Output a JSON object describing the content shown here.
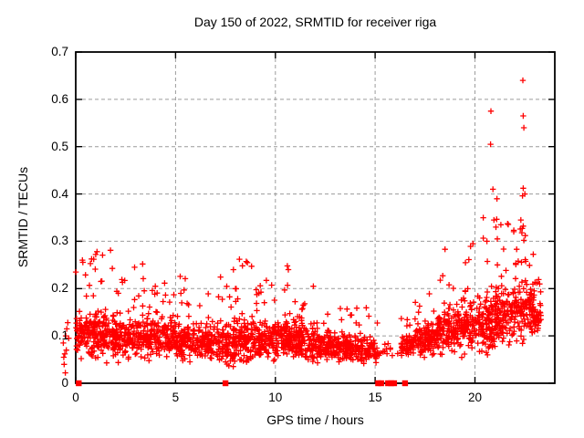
{
  "window": {
    "background": "#ffffff"
  },
  "chart_data": {
    "type": "scatter",
    "title": "Day 150 of 2022, SRMTID for receiver riga",
    "xlabel": "GPS time / hours",
    "ylabel": "SRMTID / TECUs",
    "xlim": [
      0,
      24
    ],
    "ylim": [
      0,
      0.7
    ],
    "xticks": [
      {
        "v": 0,
        "label": "0"
      },
      {
        "v": 5,
        "label": "5"
      },
      {
        "v": 10,
        "label": "10"
      },
      {
        "v": 15,
        "label": "15"
      },
      {
        "v": 20,
        "label": "20"
      }
    ],
    "yticks": [
      {
        "v": 0.0,
        "label": "0"
      },
      {
        "v": 0.1,
        "label": "0.1"
      },
      {
        "v": 0.2,
        "label": "0.2"
      },
      {
        "v": 0.3,
        "label": "0.3"
      },
      {
        "v": 0.4,
        "label": "0.4"
      },
      {
        "v": 0.5,
        "label": "0.5"
      },
      {
        "v": 0.6,
        "label": "0.6"
      },
      {
        "v": 0.7,
        "label": "0.7"
      }
    ],
    "grid": {
      "enabled": true,
      "style": "dashed",
      "color": "#9c9c9c",
      "at": "major-ticks-both-axes"
    },
    "marker": "plus",
    "marker_color": "#ff0000",
    "border_color": "#000000",
    "seed": 1150,
    "density_bands": [
      [
        0,
        1,
        115,
        0.04,
        0.105,
        0.27
      ],
      [
        1,
        2,
        115,
        0.04,
        0.1,
        0.28
      ],
      [
        2,
        3,
        110,
        0.035,
        0.095,
        0.24
      ],
      [
        3,
        4,
        112,
        0.04,
        0.1,
        0.25
      ],
      [
        4,
        5,
        108,
        0.04,
        0.095,
        0.22
      ],
      [
        5,
        6,
        108,
        0.035,
        0.09,
        0.23
      ],
      [
        6,
        7,
        105,
        0.03,
        0.085,
        0.2
      ],
      [
        7,
        8,
        108,
        0.03,
        0.085,
        0.26
      ],
      [
        8,
        9,
        112,
        0.035,
        0.09,
        0.265
      ],
      [
        9,
        10,
        108,
        0.04,
        0.09,
        0.22
      ],
      [
        10,
        11,
        112,
        0.035,
        0.095,
        0.25
      ],
      [
        11,
        12,
        108,
        0.035,
        0.09,
        0.22
      ],
      [
        12,
        13,
        102,
        0.03,
        0.08,
        0.18
      ],
      [
        13,
        14,
        100,
        0.025,
        0.075,
        0.17
      ],
      [
        14,
        15.2,
        100,
        0.025,
        0.07,
        0.16
      ],
      [
        15.2,
        16.3,
        12,
        0.04,
        0.07,
        0.12
      ],
      [
        16.3,
        17,
        70,
        0.03,
        0.08,
        0.14
      ],
      [
        17,
        18,
        105,
        0.04,
        0.095,
        0.2
      ],
      [
        18,
        19,
        110,
        0.05,
        0.11,
        0.28
      ],
      [
        19,
        20,
        115,
        0.05,
        0.12,
        0.3
      ],
      [
        20,
        21,
        120,
        0.06,
        0.13,
        0.35
      ],
      [
        21,
        22,
        125,
        0.06,
        0.14,
        0.35
      ],
      [
        22,
        23,
        120,
        0.06,
        0.15,
        0.35
      ],
      [
        23,
        23.3,
        35,
        0.08,
        0.14,
        0.22
      ]
    ],
    "outliers": [
      [
        22.4,
        0.64
      ],
      [
        20.8,
        0.575
      ],
      [
        22.42,
        0.565
      ],
      [
        22.45,
        0.54
      ],
      [
        20.78,
        0.505
      ],
      [
        20.9,
        0.41
      ],
      [
        21.1,
        0.39
      ],
      [
        22.42,
        0.412
      ],
      [
        22.5,
        0.4
      ],
      [
        22.38,
        0.396
      ],
      [
        20.95,
        0.345
      ],
      [
        21.05,
        0.33
      ],
      [
        21.3,
        0.335
      ],
      [
        22.3,
        0.345
      ],
      [
        22.42,
        0.332
      ],
      [
        22.35,
        0.318
      ],
      [
        20.6,
        0.3
      ],
      [
        21.12,
        0.305
      ],
      [
        22.45,
        0.302
      ],
      [
        22.52,
        0.312
      ],
      [
        19.9,
        0.295
      ],
      [
        18.5,
        0.283
      ],
      [
        8.2,
        0.262
      ],
      [
        8.6,
        0.255
      ],
      [
        3.35,
        0.252
      ],
      [
        1.0,
        0.272
      ],
      [
        0.9,
        0.262
      ],
      [
        1.74,
        0.281
      ],
      [
        10.6,
        0.248
      ],
      [
        10.65,
        0.24
      ],
      [
        2.95,
        0.245
      ],
      [
        7.9,
        0.24
      ]
    ],
    "zero_value_squares_x": [
      0.15,
      7.5,
      15.15,
      15.3,
      15.65,
      15.8,
      15.95,
      16.5
    ],
    "left_margin_strays": [
      [
        -0.6,
        0.055
      ],
      [
        -0.55,
        0.062
      ],
      [
        -0.62,
        0.085
      ],
      [
        -0.5,
        0.1
      ],
      [
        -0.45,
        0.115
      ],
      [
        -0.4,
        0.128
      ],
      [
        -0.58,
        0.04
      ],
      [
        -0.35,
        0.095
      ],
      [
        -0.52,
        0.022
      ],
      [
        -0.47,
        0.07
      ]
    ]
  }
}
